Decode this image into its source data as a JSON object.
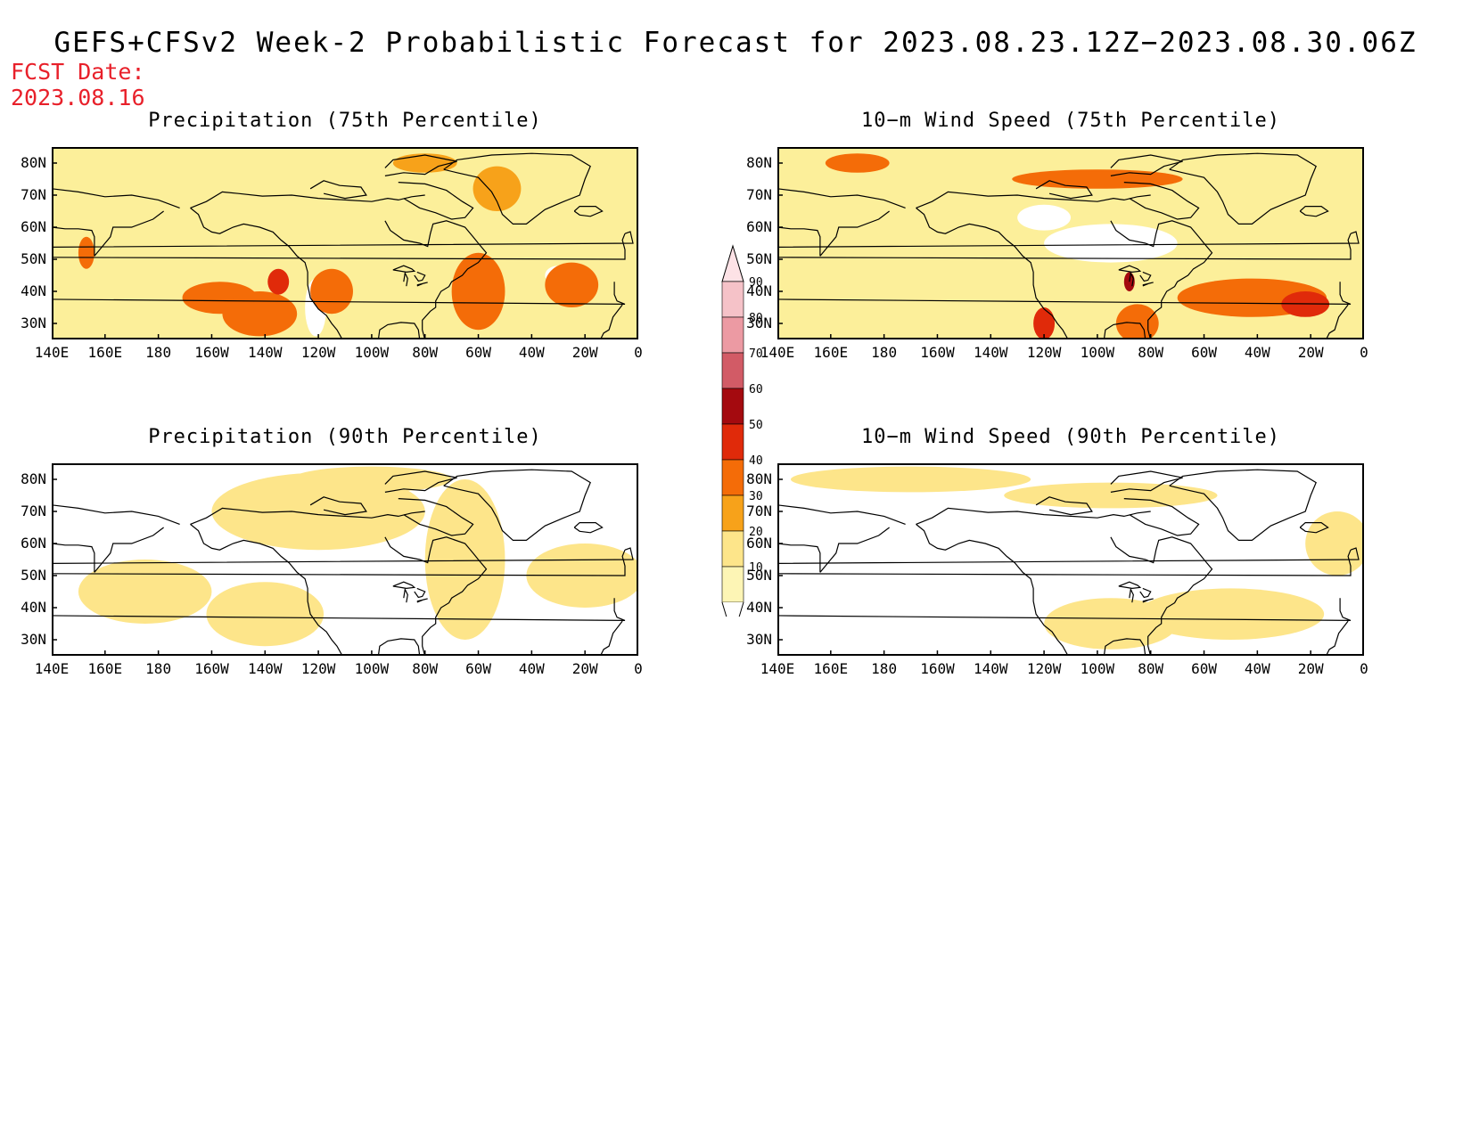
{
  "title": "GEFS+CFSv2 Week-2 Probabilistic Forecast for 2023.08.23.12Z−2023.08.30.06Z",
  "fcst_date_label": "FCST Date:",
  "fcst_date": "2023.08.16",
  "lon_labels": [
    "140E",
    "160E",
    "180",
    "160W",
    "140W",
    "120W",
    "100W",
    "80W",
    "60W",
    "40W",
    "20W",
    "0"
  ],
  "lat_labels": [
    "80N",
    "70N",
    "60N",
    "50N",
    "40N",
    "30N"
  ],
  "panels": [
    {
      "id": "precip-75",
      "title": "Precipitation (75th Percentile)",
      "background": "#fcef9a",
      "blobs": [
        {
          "lon": 153,
          "lat": 52,
          "rx": 3,
          "ry": 5,
          "level": "40"
        },
        {
          "lon": -157,
          "lat": 38,
          "rx": 14,
          "ry": 5,
          "level": "40"
        },
        {
          "lon": -142,
          "lat": 33,
          "rx": 14,
          "ry": 7,
          "level": "40"
        },
        {
          "lon": -135,
          "lat": 43,
          "rx": 4,
          "ry": 4,
          "level": "50"
        },
        {
          "lon": -115,
          "lat": 40,
          "rx": 8,
          "ry": 7,
          "level": "40"
        },
        {
          "lon": -60,
          "lat": 40,
          "rx": 10,
          "ry": 12,
          "level": "40"
        },
        {
          "lon": -53,
          "lat": 72,
          "rx": 9,
          "ry": 7,
          "level": "30"
        },
        {
          "lon": -25,
          "lat": 42,
          "rx": 10,
          "ry": 7,
          "level": "40"
        },
        {
          "lon": -80,
          "lat": 80,
          "rx": 12,
          "ry": 3,
          "level": "30"
        }
      ],
      "white_patches": [
        {
          "lon": -121,
          "lat": 35,
          "rx": 4,
          "ry": 9
        },
        {
          "lon": -30,
          "lat": 45,
          "rx": 5,
          "ry": 3
        }
      ]
    },
    {
      "id": "wind-75",
      "title": "10−m Wind Speed (75th Percentile)",
      "background": "#fcef9a",
      "blobs": [
        {
          "lon": 170,
          "lat": 80,
          "rx": 12,
          "ry": 3,
          "level": "40"
        },
        {
          "lon": -100,
          "lat": 75,
          "rx": 32,
          "ry": 3,
          "level": "40"
        },
        {
          "lon": -120,
          "lat": 30,
          "rx": 4,
          "ry": 5,
          "level": "50"
        },
        {
          "lon": -85,
          "lat": 30,
          "rx": 8,
          "ry": 6,
          "level": "40"
        },
        {
          "lon": -42,
          "lat": 38,
          "rx": 28,
          "ry": 6,
          "level": "40"
        },
        {
          "lon": -22,
          "lat": 36,
          "rx": 9,
          "ry": 4,
          "level": "50"
        },
        {
          "lon": -88,
          "lat": 43,
          "rx": 2,
          "ry": 3,
          "level": "60"
        }
      ],
      "white_patches": [
        {
          "lon": -95,
          "lat": 55,
          "rx": 25,
          "ry": 6
        },
        {
          "lon": -120,
          "lat": 63,
          "rx": 10,
          "ry": 4
        }
      ]
    },
    {
      "id": "precip-90",
      "title": "Precipitation (90th Percentile)",
      "background": "#ffffff",
      "blobs": [
        {
          "lon": 175,
          "lat": 45,
          "rx": 25,
          "ry": 10,
          "level": "20"
        },
        {
          "lon": -120,
          "lat": 70,
          "rx": 40,
          "ry": 12,
          "level": "20"
        },
        {
          "lon": -65,
          "lat": 55,
          "rx": 15,
          "ry": 25,
          "level": "20"
        },
        {
          "lon": -140,
          "lat": 38,
          "rx": 22,
          "ry": 10,
          "level": "20"
        },
        {
          "lon": -20,
          "lat": 50,
          "rx": 22,
          "ry": 10,
          "level": "20"
        },
        {
          "lon": -100,
          "lat": 80,
          "rx": 30,
          "ry": 4,
          "level": "20"
        }
      ],
      "white_patches": []
    },
    {
      "id": "wind-90",
      "title": "10−m Wind Speed (90th Percentile)",
      "background": "#ffffff",
      "blobs": [
        {
          "lon": -170,
          "lat": 80,
          "rx": 45,
          "ry": 4,
          "level": "20"
        },
        {
          "lon": -95,
          "lat": 75,
          "rx": 40,
          "ry": 4,
          "level": "20"
        },
        {
          "lon": -50,
          "lat": 38,
          "rx": 35,
          "ry": 8,
          "level": "20"
        },
        {
          "lon": -95,
          "lat": 35,
          "rx": 25,
          "ry": 8,
          "level": "20"
        },
        {
          "lon": -10,
          "lat": 60,
          "rx": 12,
          "ry": 10,
          "level": "20"
        }
      ],
      "white_patches": []
    }
  ],
  "colorbar": {
    "labels": [
      "90",
      "80",
      "70",
      "60",
      "50",
      "40",
      "30",
      "20",
      "10"
    ],
    "colors": {
      "90": "#f5c2c8",
      "80": "#ec9aa3",
      "70": "#d25b66",
      "60": "#a40a0f",
      "50": "#e02a0a",
      "40": "#f46c08",
      "30": "#f7a21a",
      "20": "#fde58a",
      "10": "#fdf5b5"
    }
  }
}
